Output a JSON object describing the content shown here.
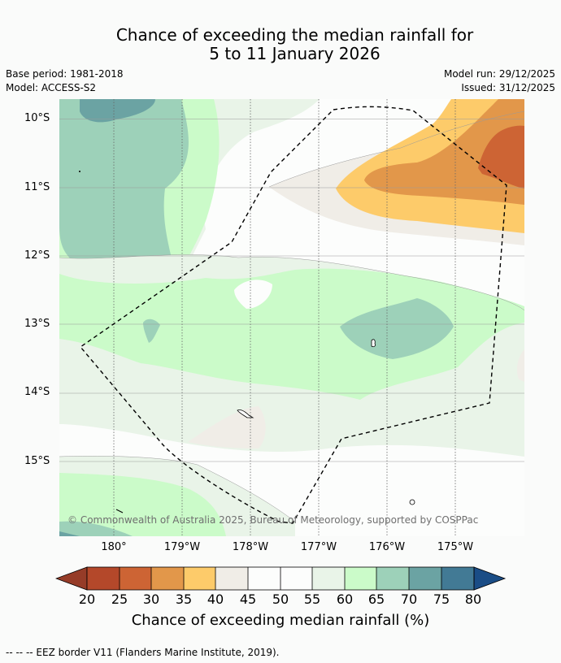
{
  "title": {
    "line1": "Chance of exceeding the median rainfall for",
    "line2": "5 to 11 January 2026"
  },
  "meta": {
    "base_period": "Base period: 1981-2018",
    "model": "Model: ACCESS-S2",
    "model_run": "Model run: 29/12/2025",
    "issued": "Issued: 31/12/2025"
  },
  "map": {
    "lat_labels": [
      "10°S",
      "11°S",
      "12°S",
      "13°S",
      "14°S",
      "15°S"
    ],
    "lon_labels": [
      "180°",
      "179°W",
      "178°W",
      "177°W",
      "176°W",
      "175°W"
    ],
    "copyright": "© Commonwealth of Australia 2025, Bureau of Meteorology, supported by COSPPac",
    "colors": {
      "c20_25": "#b4482a",
      "c25_30": "#cd6434",
      "c30_35": "#e2974a",
      "c35_40": "#fdcb6a",
      "c40_45": "#f0ede7",
      "c45_55": "#fcfdfc",
      "c55_60": "#e9f4e8",
      "c60_65": "#cbfbc9",
      "c65_70": "#9dd1b9",
      "c70_75": "#6ba3a3",
      "c75_80": "#427a95",
      "under20": "#963c28",
      "over80": "#1a4d86"
    }
  },
  "colorbar": {
    "ticks": [
      "20",
      "25",
      "30",
      "35",
      "40",
      "45",
      "50",
      "55",
      "60",
      "65",
      "70",
      "75",
      "80"
    ],
    "label": "Chance of exceeding median rainfall (%)"
  },
  "footnote": "--  --  -- EEZ border V11 (Flanders Marine Institute, 2019)."
}
